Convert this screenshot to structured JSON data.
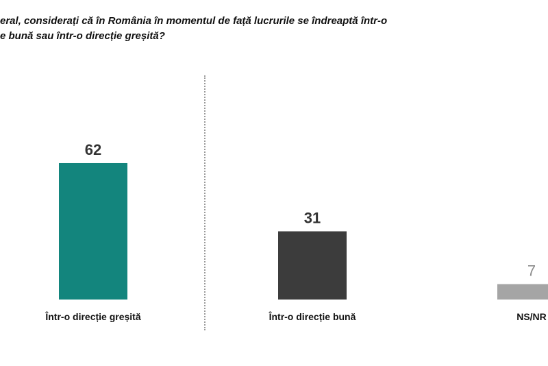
{
  "title_lines": [
    "eral, considerați că în România în momentul de față lucrurile se îndreaptă într-o",
    "e bună sau într-o direcție greșită?"
  ],
  "chart_data": {
    "type": "bar",
    "categories": [
      "Într-o direcție greșită",
      "Într-o direcție bună",
      "NS/NR"
    ],
    "values": [
      62,
      31,
      7
    ],
    "colors": [
      "#13857d",
      "#3c3c3c",
      "#a5a5a5"
    ],
    "value_label_colors": [
      "#333333",
      "#333333",
      "#8c8c8c"
    ],
    "grid": false
  }
}
